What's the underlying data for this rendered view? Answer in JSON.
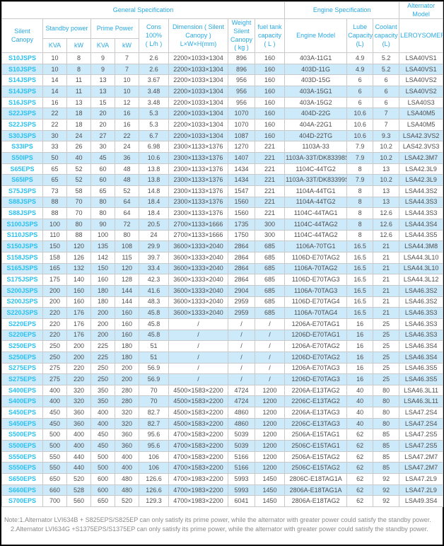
{
  "colors": {
    "header_text": "#29a9e1",
    "model_text": "#29c0ef",
    "stripe_blue": "#cdeafb",
    "grid_border": "#c9c9c9",
    "data_text": "#4d4d4d",
    "note_text": "#8a8a8a",
    "frame": "#000000"
  },
  "table": {
    "sections": [
      {
        "label": "General Specification"
      },
      {
        "label": "Engine Specification"
      },
      {
        "label": "Alternator Model"
      }
    ],
    "headers": {
      "silent_canopy": "Silent Canopy",
      "standby_power": "Standby power",
      "prime_power": "Prime Power",
      "kva": "KVA",
      "kw": "kW",
      "cons": "Cons 100% ( L/h )",
      "dimension": "Dimension ( Silent Canopy ) L×W×H(mm)",
      "weight": "Weight Silent Canopy ( kg )",
      "fuel_tank": "fuel tank capacity ( L )",
      "engine_model": "Engine Model",
      "lube_capacity": "Lube Capacity (L)",
      "coolant_capacity": "Coolant capacity (L)",
      "leroysomer": "LEROYSOMER"
    },
    "rows": [
      [
        "S10JSPS",
        "10",
        "8",
        "9",
        "7",
        "2.6",
        "2200×1033×1304",
        "896",
        "160",
        "403A-11G1",
        "4.9",
        "5.2",
        "LSA40VS1"
      ],
      [
        "S10JSPS",
        "10",
        "8",
        "9",
        "7",
        "2.6",
        "2200×1033×1304",
        "896",
        "160",
        "403D-11G",
        "4.9",
        "5.2",
        "LSA40VS1"
      ],
      [
        "S14JSPS",
        "14",
        "11",
        "13",
        "10",
        "3.67",
        "2200×1033×1304",
        "956",
        "160",
        "403D-15G",
        "6",
        "6",
        "LSA40VS2"
      ],
      [
        "S14JSPS",
        "14",
        "11",
        "13",
        "10",
        "3.48",
        "2200×1033×1304",
        "956",
        "160",
        "403A-15G1",
        "6",
        "6",
        "LSA40VS2"
      ],
      [
        "S16JSPS",
        "16",
        "13",
        "15",
        "12",
        "3.48",
        "2200×1033×1304",
        "956",
        "160",
        "403A-15G2",
        "6",
        "6",
        "LSA40S3"
      ],
      [
        "S22JSPS",
        "22",
        "18",
        "20",
        "16",
        "5.3",
        "2200×1033×1304",
        "1070",
        "160",
        "404D-22G",
        "10.6",
        "7",
        "LSA40M5"
      ],
      [
        "S22JSPS",
        "22",
        "18",
        "20",
        "16",
        "5.3",
        "2200×1033×1304",
        "1070",
        "160",
        "404A-22G1",
        "10.6",
        "7",
        "LSA40M5"
      ],
      [
        "S30JSPS",
        "30",
        "24",
        "27",
        "22",
        "6.7",
        "2200×1033×1304",
        "1087",
        "160",
        "404D-22TG",
        "10.6",
        "9.3",
        "LSA42.3VS2"
      ],
      [
        "S33IPS",
        "33",
        "26",
        "30",
        "24",
        "6.98",
        "2300×1133×1376",
        "1270",
        "221",
        "1103A-33",
        "7.9",
        "10.2",
        "LAS42.3VS3"
      ],
      [
        "S50IPS",
        "50",
        "40",
        "45",
        "36",
        "10.6",
        "2300×1133×1376",
        "1407",
        "221",
        "1103A-33T/DK83398S",
        "7.9",
        "10.2",
        "LSA42.3M7"
      ],
      [
        "S65EPS",
        "65",
        "52",
        "60",
        "48",
        "13.8",
        "2300×1133×1376",
        "1434",
        "221",
        "1104C-44TG2",
        "8",
        "13",
        "LSA42.3L9"
      ],
      [
        "S65IPS",
        "65",
        "52",
        "60",
        "48",
        "13.8",
        "2300×1133×1376",
        "1434",
        "221",
        "1103A-33T/DK83399S",
        "7.9",
        "10.2",
        "LSA42.3L9"
      ],
      [
        "S75JSPS",
        "73",
        "58",
        "65",
        "52",
        "14.8",
        "2300×1133×1376",
        "1547",
        "221",
        "1104A-44TG1",
        "8",
        "13",
        "LSA44.3S2"
      ],
      [
        "S88JSPS",
        "88",
        "70",
        "80",
        "64",
        "18.4",
        "2300×1133×1376",
        "1560",
        "221",
        "1104A-44TG2",
        "8",
        "13",
        "LSA44.3S3"
      ],
      [
        "S88JSPS",
        "88",
        "70",
        "80",
        "64",
        "18.4",
        "2300×1133×1376",
        "1560",
        "221",
        "1104C-44TAG1",
        "8",
        "12.6",
        "LSA44.3S3"
      ],
      [
        "S100JSPS",
        "100",
        "80",
        "90",
        "72",
        "20.5",
        "2700×1133×1666",
        "1735",
        "300",
        "1104C-44TAG2",
        "8",
        "12.6",
        "LSA44.3S4"
      ],
      [
        "S110JSPS",
        "110",
        "88",
        "100",
        "80",
        "24",
        "2700×1133×1666",
        "1750",
        "300",
        "1104C-44TAG2",
        "8",
        "12.6",
        "LSA44.3S5"
      ],
      [
        "S150JSPS",
        "150",
        "120",
        "135",
        "108",
        "29.9",
        "3600×1333×2040",
        "2864",
        "685",
        "1106A-70TG1",
        "16.5",
        "21",
        "LSA44.3M8"
      ],
      [
        "S158JSPS",
        "158",
        "126",
        "142",
        "115",
        "39.7",
        "3600×1333×2040",
        "2864",
        "685",
        "1106D-E70TAG2",
        "16.5",
        "21",
        "LSA44.3L10"
      ],
      [
        "S165JSPS",
        "165",
        "132",
        "150",
        "120",
        "33.4",
        "3600×1333×2040",
        "2864",
        "685",
        "1106A-70TAG2",
        "16.5",
        "21",
        "LSA44.3L10"
      ],
      [
        "S175JSPS",
        "175",
        "140",
        "160",
        "128",
        "42.3",
        "3600×1333×2040",
        "2864",
        "685",
        "1106D-E70TAG3",
        "16.5",
        "21",
        "LSA44.3L12"
      ],
      [
        "S200JSPS",
        "200",
        "160",
        "180",
        "144",
        "41.6",
        "3600×1333×2040",
        "2904",
        "685",
        "1106A-70TAG3",
        "16.5",
        "21",
        "LSA46.3S2"
      ],
      [
        "S200JSPS",
        "200",
        "160",
        "180",
        "144",
        "48.3",
        "3600×1333×2040",
        "2959",
        "685",
        "1106D-E70TAG4",
        "16.5",
        "21",
        "LSA46.3S2"
      ],
      [
        "S220JSPS",
        "220",
        "176",
        "200",
        "160",
        "45.8",
        "3600×1333×2040",
        "2959",
        "685",
        "1106A-70TAG4",
        "16.5",
        "21",
        "LSA46.3S3"
      ],
      [
        "S220EPS",
        "220",
        "176",
        "200",
        "160",
        "45.8",
        "/",
        "/",
        "/",
        "1206A-E70TAG1",
        "16",
        "25",
        "LSA46.3S3"
      ],
      [
        "S220EPS",
        "220",
        "176",
        "200",
        "160",
        "45.8",
        "/",
        "/",
        "/",
        "1206D-E70TAG1",
        "16",
        "25",
        "LSA46.3S3"
      ],
      [
        "S250EPS",
        "250",
        "200",
        "225",
        "180",
        "51",
        "/",
        "/",
        "/",
        "1206A-E70TAG2",
        "16",
        "25",
        "LSA46.3S4"
      ],
      [
        "S250EPS",
        "250",
        "200",
        "225",
        "180",
        "51",
        "/",
        "/",
        "/",
        "1206D-E70TAG2",
        "16",
        "25",
        "LSA46.3S4"
      ],
      [
        "S275EPS",
        "275",
        "220",
        "250",
        "200",
        "56.9",
        "/",
        "/",
        "/",
        "1206A-E70TAG3",
        "16",
        "25",
        "LSA46.3S5"
      ],
      [
        "S275EPS",
        "275",
        "220",
        "250",
        "200",
        "56.9",
        "/",
        "/",
        "/",
        "1206D-E70TAG3",
        "16",
        "25",
        "LSA46.3S5"
      ],
      [
        "S400EPS",
        "400",
        "320",
        "350",
        "280",
        "70",
        "4500×1583×2200",
        "4724",
        "1200",
        "2206A-E13TAG2",
        "40",
        "80",
        "LSA46.3L11"
      ],
      [
        "S400EPS",
        "400",
        "320",
        "350",
        "280",
        "70",
        "4500×1583×2200",
        "4724",
        "1200",
        "2206C-E13TAG2",
        "40",
        "80",
        "LSA46.3L11"
      ],
      [
        "S450EPS",
        "450",
        "360",
        "400",
        "320",
        "82.7",
        "4500×1583×2200",
        "4860",
        "1200",
        "2206A-E13TAG3",
        "40",
        "80",
        "LSA47.2S4"
      ],
      [
        "S450EPS",
        "450",
        "360",
        "400",
        "320",
        "82.7",
        "4500×1583×2200",
        "4860",
        "1200",
        "2206C-E13TAG3",
        "40",
        "80",
        "LSA47.2S4"
      ],
      [
        "S500EPS",
        "500",
        "400",
        "450",
        "360",
        "95.6",
        "4700×1583×2200",
        "5039",
        "1200",
        "2506A-E15TAG1",
        "62",
        "85",
        "LSA47.2S5"
      ],
      [
        "S500EPS",
        "500",
        "400",
        "450",
        "360",
        "95.6",
        "4700×1583×2200",
        "5039",
        "1200",
        "2506C-E15TAG1",
        "62",
        "85",
        "LSA47.2S5"
      ],
      [
        "S550EPS",
        "550",
        "440",
        "500",
        "400",
        "106",
        "4700×1583×2200",
        "5166",
        "1200",
        "2506A-E15TAG2",
        "62",
        "85",
        "LSA47.2M7"
      ],
      [
        "S550EPS",
        "550",
        "440",
        "500",
        "400",
        "106",
        "4700×1583×2200",
        "5166",
        "1200",
        "2506C-E15TAG2",
        "62",
        "85",
        "LSA47.2M7"
      ],
      [
        "S650EPS",
        "650",
        "520",
        "600",
        "480",
        "126.6",
        "4700×1983×2200",
        "5993",
        "1450",
        "2806C-E18TAG1A",
        "62",
        "92",
        "LSA47.2L9"
      ],
      [
        "S660EPS",
        "660",
        "528",
        "600",
        "480",
        "126.6",
        "4700×1983×2200",
        "5993",
        "1450",
        "2806A-E18TAG1A",
        "62",
        "92",
        "LSA47.2L9"
      ],
      [
        "S700EPS",
        "700",
        "560",
        "650",
        "520",
        "129.3",
        "4700×1983×2200",
        "6041",
        "1450",
        "2806A-E18TAG2",
        "62",
        "92",
        "LSA49.3S4"
      ]
    ]
  },
  "notes": {
    "line1": "Note:1.Alternator LVI634B + S825EPS/S825EP can only satisfy its prime power, while the alternator with greater power could satisfy the standby power.",
    "line2": "2.Alternator LVI634G +S1375EPS/S1375EP can only satisfy its prime power, while the alternator with greater power could satisfy the standby power."
  }
}
